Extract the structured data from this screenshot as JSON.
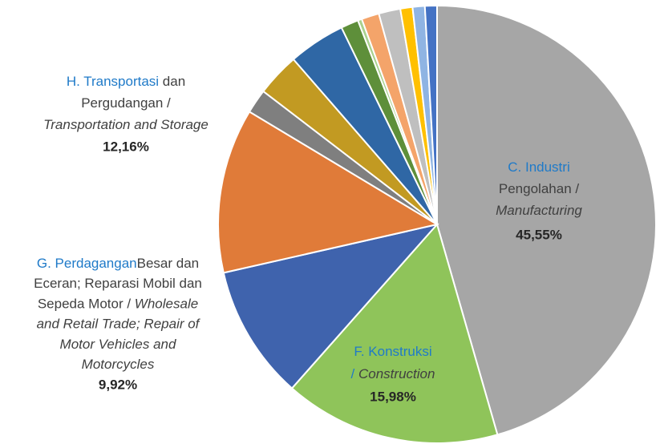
{
  "chart_data": {
    "type": "pie",
    "categories": [
      [
        [
          {
            "text": "C. Industri",
            "style": "code"
          }
        ],
        [
          {
            "text": "Pengolahan /",
            "style": "plain"
          }
        ],
        [
          {
            "text": "Manufacturing",
            "style": "italic"
          }
        ]
      ],
      [
        [
          {
            "text": "F. Konstruksi",
            "style": "code"
          }
        ],
        [
          {
            "text": "/ ",
            "style": "code"
          },
          {
            "text": "Construction",
            "style": "italic"
          }
        ]
      ],
      [
        [
          {
            "text": "G. Perdagangan",
            "style": "code"
          },
          {
            "text": "Besar dan",
            "style": "plain"
          }
        ],
        [
          {
            "text": "Eceran; Reparasi Mobil dan",
            "style": "plain"
          }
        ],
        [
          {
            "text": "Sepeda Motor / ",
            "style": "plain"
          },
          {
            "text": "Wholesale",
            "style": "italic"
          }
        ],
        [
          {
            "text": "and Retail Trade; Repair of",
            "style": "italic"
          }
        ],
        [
          {
            "text": "Motor Vehicles and",
            "style": "italic"
          }
        ],
        [
          {
            "text": "Motorcycles",
            "style": "italic"
          }
        ]
      ],
      [
        [
          {
            "text": "H. Transportasi",
            "style": "code"
          },
          {
            "text": " dan",
            "style": "plain"
          }
        ],
        [
          {
            "text": "Pergudangan /",
            "style": "plain"
          }
        ],
        [
          {
            "text": "Transportation and Storage",
            "style": "italic"
          }
        ]
      ],
      null,
      null,
      null,
      null,
      null,
      null,
      null,
      null,
      null,
      null
    ],
    "values": [
      45.55,
      15.98,
      9.92,
      12.16,
      1.8,
      3.2,
      4.2,
      1.3,
      0.3,
      1.3,
      1.6,
      0.9,
      0.9,
      0.89
    ],
    "value_labels": [
      "45,55%",
      "15,98%",
      "9,92%",
      "12,16%",
      null,
      null,
      null,
      null,
      null,
      null,
      null,
      null,
      null,
      null
    ],
    "colors": [
      "#a6a6a6",
      "#8fc45a",
      "#3f63ad",
      "#e07b39",
      "#7f7f7f",
      "#c29a22",
      "#2f67a5",
      "#5e8f3a",
      "#a9d18e",
      "#f4a46a",
      "#bfbfbf",
      "#ffc000",
      "#8fb4e3",
      "#4472c4"
    ]
  }
}
